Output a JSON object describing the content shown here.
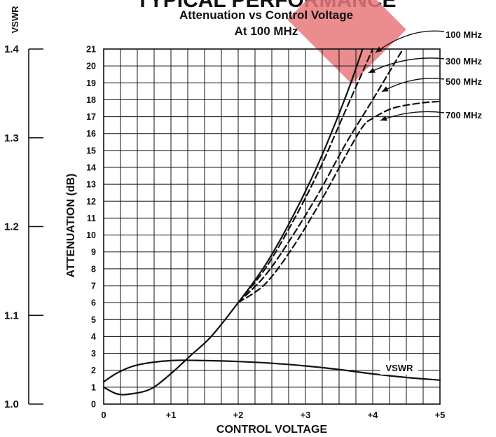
{
  "header_text": "TYPICAL PERFORMANCE",
  "chart_data": {
    "type": "line",
    "title": "Attenuation vs Control Voltage",
    "subtitle": "At 100 MHz",
    "xlabel": "CONTROL VOLTAGE",
    "ylabel": "ATTENUATION (dB)",
    "y2label": "VSWR",
    "xlim": [
      0,
      5
    ],
    "ylim": [
      0,
      21
    ],
    "y2lim": [
      1.0,
      1.4
    ],
    "x_ticks": [
      "0",
      "+1",
      "+2",
      "+3",
      "+4",
      "+5"
    ],
    "y_ticks": [
      "0",
      "1",
      "2",
      "3",
      "4",
      "5",
      "6",
      "7",
      "8",
      "9",
      "10",
      "11",
      "12",
      "13",
      "14",
      "15",
      "16",
      "17",
      "18",
      "19",
      "20",
      "21"
    ],
    "y2_ticks": [
      "1.0",
      "1.1",
      "1.2",
      "1.3",
      "1.4"
    ],
    "grid": true,
    "series": [
      {
        "name": "100 MHz",
        "style": "solid",
        "axis": "attenuation",
        "x": [
          0,
          0.2,
          0.4,
          0.7,
          1.0,
          1.3,
          1.6,
          2.0,
          2.4,
          2.8,
          3.2,
          3.6,
          3.85
        ],
        "y": [
          1.0,
          0.6,
          0.6,
          0.9,
          1.8,
          2.9,
          4.0,
          6.0,
          8.2,
          11.0,
          14.3,
          18.2,
          21.0
        ]
      },
      {
        "name": "300 MHz",
        "style": "dashed",
        "axis": "attenuation",
        "x": [
          2.0,
          2.4,
          2.8,
          3.2,
          3.6,
          4.0
        ],
        "y": [
          6.0,
          8.0,
          10.7,
          13.8,
          17.4,
          21.0
        ]
      },
      {
        "name": "500 MHz",
        "style": "dashed",
        "axis": "attenuation",
        "x": [
          2.0,
          2.4,
          2.8,
          3.2,
          3.6,
          4.0,
          4.45
        ],
        "y": [
          6.0,
          7.6,
          9.9,
          12.5,
          15.4,
          18.0,
          21.0
        ]
      },
      {
        "name": "700 MHz",
        "style": "dashed",
        "axis": "attenuation",
        "x": [
          2.0,
          2.4,
          2.8,
          3.2,
          3.6,
          3.85,
          4.0,
          4.3,
          4.7,
          5.0
        ],
        "y": [
          6.0,
          7.1,
          9.2,
          11.8,
          14.7,
          16.4,
          16.9,
          17.5,
          17.8,
          17.9
        ]
      },
      {
        "name": "VSWR",
        "style": "solid",
        "axis": "vswr",
        "x": [
          0,
          0.2,
          0.5,
          1.0,
          1.5,
          2.0,
          2.5,
          3.0,
          3.5,
          4.0,
          4.5,
          5.0
        ],
        "y": [
          1.025,
          1.035,
          1.044,
          1.049,
          1.049,
          1.048,
          1.046,
          1.043,
          1.039,
          1.034,
          1.03,
          1.027
        ]
      }
    ],
    "labels": {
      "s100": "100 MHz",
      "s300": "300 MHz",
      "s500": "500 MHz",
      "s700": "700 MHz",
      "vswr": "VSWR"
    }
  }
}
